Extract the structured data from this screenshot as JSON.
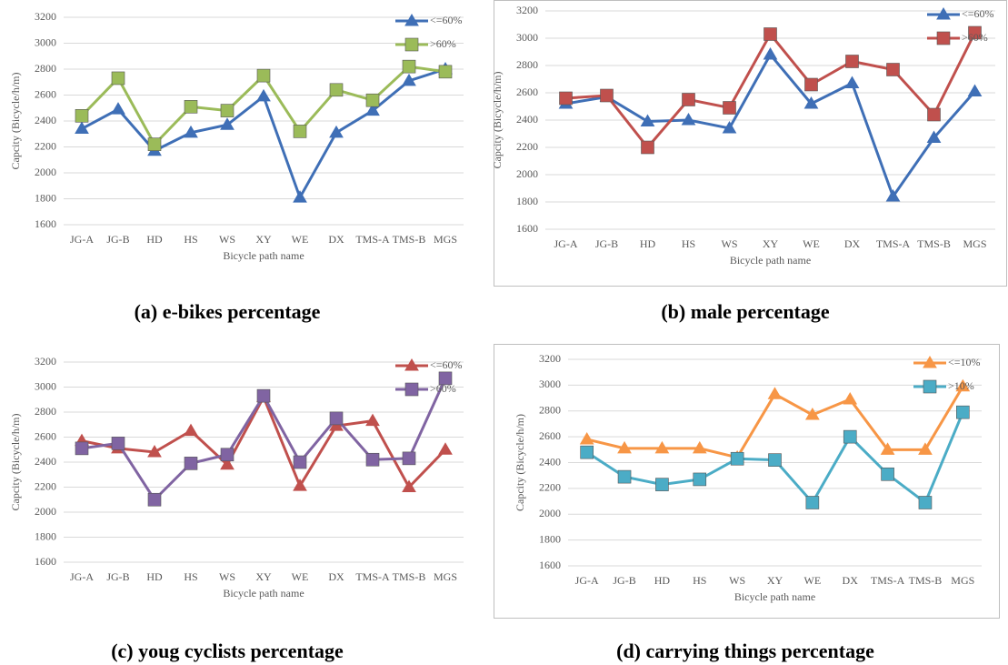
{
  "chart_data": [
    {
      "type": "line",
      "caption": "(a) e-bikes percentage",
      "x_label": "Bicycle path name",
      "y_label": "Capcity (Bicycle/h/m)",
      "categories": [
        "JG-A",
        "JG-B",
        "HD",
        "HS",
        "WS",
        "XY",
        "WE",
        "DX",
        "TMS-A",
        "TMS-B",
        "MGS"
      ],
      "series": [
        {
          "name": "<=60%",
          "color": "#3f6fb6",
          "marker": "triangle",
          "values": [
            2340,
            2490,
            2170,
            2310,
            2370,
            2590,
            1810,
            2310,
            2480,
            2710,
            2800
          ]
        },
        {
          "name": ">60%",
          "color": "#9bbb59",
          "marker": "square",
          "values": [
            2440,
            2730,
            2220,
            2510,
            2480,
            2750,
            2320,
            2640,
            2560,
            2820,
            2780
          ]
        }
      ],
      "ylim": [
        1600,
        3200
      ],
      "yticks": [
        1600,
        1800,
        2000,
        2200,
        2400,
        2600,
        2800,
        3000,
        3200
      ],
      "grid": true,
      "legend": "top-right",
      "border": false
    },
    {
      "type": "line",
      "caption": "(b) male percentage",
      "x_label": "Bicycle path name",
      "y_label": "Capcity (Bicycle/h/m)",
      "categories": [
        "JG-A",
        "JG-B",
        "HD",
        "HS",
        "WS",
        "XY",
        "WE",
        "DX",
        "TMS-A",
        "TMS-B",
        "MGS"
      ],
      "series": [
        {
          "name": "<=60%",
          "color": "#3f6fb6",
          "marker": "triangle",
          "values": [
            2520,
            2570,
            2390,
            2400,
            2340,
            2880,
            2520,
            2670,
            1840,
            2270,
            2610
          ]
        },
        {
          "name": ">60%",
          "color": "#c0504d",
          "marker": "square",
          "values": [
            2560,
            2580,
            2200,
            2550,
            2490,
            3030,
            2660,
            2830,
            2770,
            2440,
            3040
          ]
        }
      ],
      "ylim": [
        1600,
        3200
      ],
      "yticks": [
        1600,
        1800,
        2000,
        2200,
        2400,
        2600,
        2800,
        3000,
        3200
      ],
      "grid": true,
      "legend": "top-right",
      "border": true
    },
    {
      "type": "line",
      "caption": "(c) youg cyclists percentage",
      "x_label": "Bicycle path name",
      "y_label": "Capcity (Bicycle/h/m)",
      "categories": [
        "JG-A",
        "JG-B",
        "HD",
        "HS",
        "WS",
        "XY",
        "WE",
        "DX",
        "TMS-A",
        "TMS-B",
        "MGS"
      ],
      "series": [
        {
          "name": "<=60%",
          "color": "#c0504d",
          "marker": "triangle",
          "values": [
            2570,
            2510,
            2480,
            2650,
            2380,
            2920,
            2210,
            2690,
            2730,
            2200,
            2500
          ]
        },
        {
          "name": ">60%",
          "color": "#8064a2",
          "marker": "square",
          "values": [
            2510,
            2550,
            2100,
            2390,
            2460,
            2930,
            2400,
            2750,
            2420,
            2430,
            3070
          ]
        }
      ],
      "ylim": [
        1600,
        3200
      ],
      "yticks": [
        1600,
        1800,
        2000,
        2200,
        2400,
        2600,
        2800,
        3000,
        3200
      ],
      "grid": true,
      "legend": "top-right",
      "border": false
    },
    {
      "type": "line",
      "caption": "(d) carrying things percentage",
      "x_label": "Bicycle path name",
      "y_label": "Capcity (Bicycle/h/m)",
      "categories": [
        "JG-A",
        "JG-B",
        "HD",
        "HS",
        "WS",
        "XY",
        "WE",
        "DX",
        "TMS-A",
        "TMS-B",
        "MGS"
      ],
      "series": [
        {
          "name": "<=10%",
          "color": "#f79646",
          "marker": "triangle",
          "values": [
            2580,
            2510,
            2510,
            2510,
            2440,
            2930,
            2770,
            2890,
            2500,
            2500,
            2990
          ]
        },
        {
          "name": ">10%",
          "color": "#4bacc6",
          "marker": "square",
          "values": [
            2480,
            2290,
            2230,
            2270,
            2430,
            2420,
            2090,
            2600,
            2310,
            2090,
            2790
          ]
        }
      ],
      "ylim": [
        1600,
        3200
      ],
      "yticks": [
        1600,
        1800,
        2000,
        2200,
        2400,
        2600,
        2800,
        3000,
        3200
      ],
      "grid": true,
      "legend": "top-right",
      "border": true
    }
  ]
}
